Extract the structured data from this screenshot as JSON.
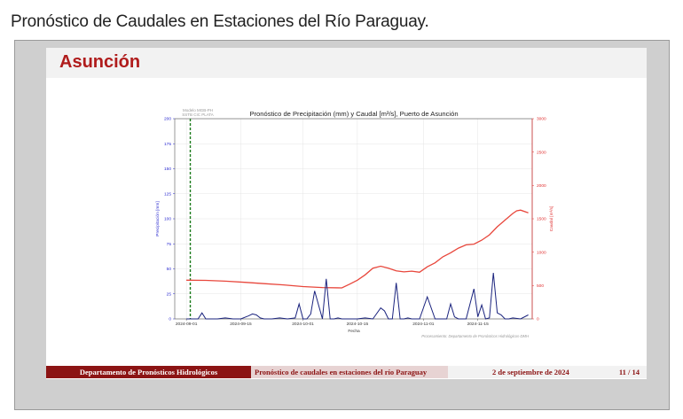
{
  "page": {
    "title": "Pronóstico de Caudales en Estaciones del Río Paraguay."
  },
  "slide": {
    "title": "Asunción"
  },
  "footer": {
    "department": "Departamento de Pronósticos Hidrológicos",
    "subject": "Pronóstico de caudales en estaciones del río Paraguay",
    "date": "2 de septiembre de 2024",
    "page": "11 / 14"
  },
  "chart_data": {
    "type": "line",
    "title": "Pronóstico de Precipitación (mm) y Caudal [m³/s], Puerto de Asunción",
    "model_label_1": "Modelo MGB-PH",
    "model_label_2": "SSTB CIC PLATA",
    "xlabel": "Fecha",
    "ylabel_left": "Precipitación [mm]",
    "ylabel_right": "Caudal [m³/s]",
    "credit": "Procesamiento: Departamento de Pronósticos Hidrológicos-DMH",
    "left_ylim": [
      0,
      200
    ],
    "right_ylim": [
      0,
      3000
    ],
    "left_ticks": [
      "0",
      "25",
      "50",
      "75",
      "100",
      "125",
      "150",
      "175",
      "200"
    ],
    "right_ticks": [
      "0",
      "500",
      "1000",
      "1500",
      "2000",
      "2500",
      "3000"
    ],
    "x_ticks": [
      "2024-09-01",
      "2024-09-15",
      "2024-10-01",
      "2024-10-15",
      "2024-11-01",
      "2024-11-15"
    ],
    "x_tick_days": [
      0,
      14,
      30,
      44,
      61,
      75
    ],
    "x_range_days": [
      -3,
      89
    ],
    "forecast_start_day": 1,
    "colors": {
      "precip": "#1a237e",
      "discharge": "#e8473c",
      "forecast_line": "#1b7a1b",
      "right_axis": "#e03030",
      "left_axis": "#2a2ad0"
    },
    "series": [
      {
        "name": "Caudal",
        "axis": "right",
        "days": [
          0,
          5,
          10,
          15,
          20,
          25,
          30,
          35,
          40,
          42,
          44,
          46,
          48,
          50,
          52,
          54,
          56,
          58,
          60,
          62,
          64,
          66,
          68,
          70,
          72,
          74,
          76,
          78,
          80,
          82,
          84,
          85,
          86,
          88
        ],
        "values": [
          580,
          578,
          565,
          548,
          528,
          510,
          485,
          470,
          465,
          520,
          580,
          660,
          760,
          790,
          760,
          720,
          705,
          715,
          700,
          780,
          840,
          930,
          990,
          1060,
          1110,
          1120,
          1180,
          1260,
          1380,
          1480,
          1580,
          1620,
          1630,
          1590
        ]
      },
      {
        "name": "Precipitación",
        "axis": "left",
        "days": [
          0,
          3,
          4,
          5,
          6,
          8,
          10,
          12,
          14,
          16,
          17,
          18,
          19,
          20,
          22,
          24,
          26,
          28,
          29,
          30,
          31,
          32,
          33,
          35,
          36,
          37,
          38,
          39,
          40,
          42,
          44,
          46,
          48,
          50,
          51,
          52,
          53,
          54,
          55,
          56,
          57,
          58,
          60,
          62,
          64,
          66,
          67,
          68,
          69,
          70,
          72,
          74,
          75,
          76,
          77,
          78,
          79,
          80,
          81,
          82,
          83,
          84,
          86,
          88
        ],
        "values": [
          0,
          0,
          6,
          0,
          0,
          0,
          1,
          0,
          0,
          3,
          5,
          4,
          1,
          0,
          0,
          1,
          0,
          1,
          15,
          0,
          0,
          5,
          28,
          0,
          40,
          0,
          0,
          1,
          0,
          0,
          0,
          1,
          0,
          11,
          8,
          0,
          0,
          36,
          0,
          0,
          1,
          0,
          0,
          22,
          0,
          0,
          0,
          15,
          2,
          0,
          0,
          30,
          2,
          14,
          0,
          1,
          46,
          6,
          4,
          0,
          0,
          1,
          0,
          4
        ]
      }
    ]
  }
}
